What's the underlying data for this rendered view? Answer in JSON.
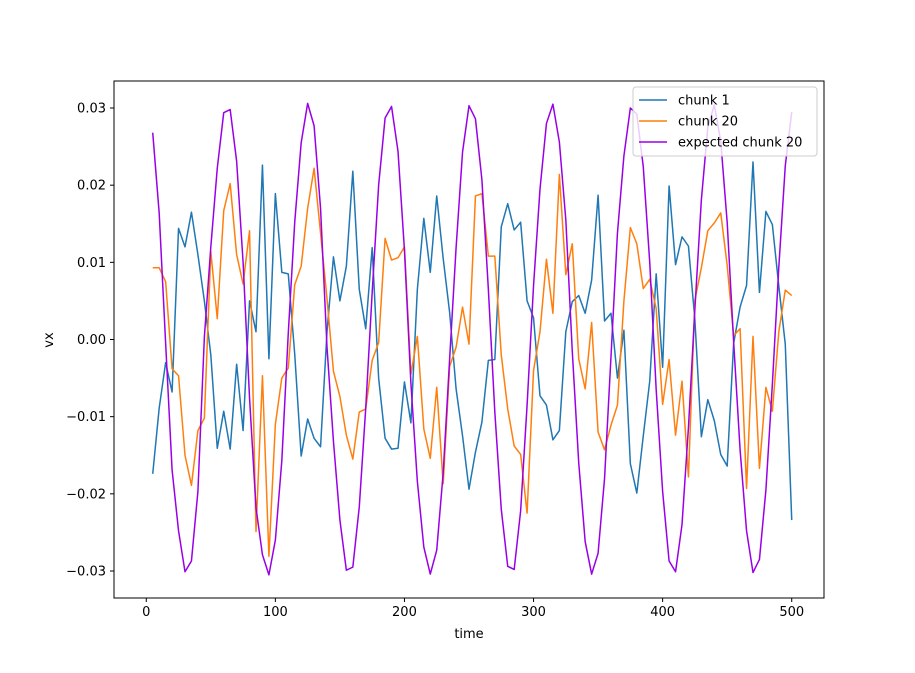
{
  "chart_data": {
    "type": "line",
    "xlabel": "time",
    "ylabel": "vx",
    "xlim": [
      -25,
      525
    ],
    "ylim": [
      -0.0335,
      0.0335
    ],
    "xticks": [
      0,
      100,
      200,
      300,
      400,
      500
    ],
    "yticks": [
      -0.03,
      -0.02,
      -0.01,
      0.0,
      0.01,
      0.02,
      0.03
    ],
    "xtick_labels": [
      "0",
      "100",
      "200",
      "300",
      "400",
      "500"
    ],
    "ytick_labels": [
      "−0.03",
      "−0.02",
      "−0.01",
      "0.00",
      "0.01",
      "0.02",
      "0.03"
    ],
    "legend_position": "upper-right",
    "grid": false,
    "x": [
      5,
      10,
      15,
      20,
      25,
      30,
      35,
      40,
      45,
      50,
      55,
      60,
      65,
      70,
      75,
      80,
      85,
      90,
      95,
      100,
      105,
      110,
      115,
      120,
      125,
      130,
      135,
      140,
      145,
      150,
      155,
      160,
      165,
      170,
      175,
      180,
      185,
      190,
      195,
      200,
      205,
      210,
      215,
      220,
      225,
      230,
      235,
      240,
      245,
      250,
      255,
      260,
      265,
      270,
      275,
      280,
      285,
      290,
      295,
      300,
      305,
      310,
      315,
      320,
      325,
      330,
      335,
      340,
      345,
      350,
      355,
      360,
      365,
      370,
      375,
      380,
      385,
      390,
      395,
      400,
      405,
      410,
      415,
      420,
      425,
      430,
      435,
      440,
      445,
      450,
      455,
      460,
      465,
      470,
      475,
      480,
      485,
      490,
      495,
      500
    ],
    "series": [
      {
        "name": "chunk 1",
        "color": "#1f77b4",
        "values": [
          -0.0174,
          -0.0089,
          -0.003,
          -0.0068,
          0.0144,
          0.012,
          0.0165,
          0.011,
          0.005,
          -0.002,
          -0.0141,
          -0.0093,
          -0.0142,
          -0.0032,
          -0.0118,
          0.005,
          0.001,
          0.0226,
          -0.0025,
          0.0189,
          0.0087,
          0.0085,
          -0.0019,
          -0.0151,
          -0.0103,
          -0.0128,
          -0.0139,
          0.001,
          0.0107,
          0.005,
          0.0095,
          0.0218,
          0.0065,
          0.0014,
          0.0119,
          -0.005,
          -0.0128,
          -0.0142,
          -0.0141,
          -0.0055,
          -0.0108,
          0.0065,
          0.0157,
          0.0087,
          0.0186,
          0.0105,
          0.0035,
          -0.0064,
          -0.0125,
          -0.0194,
          -0.0146,
          -0.0107,
          -0.0027,
          -0.0026,
          0.0146,
          0.0176,
          0.0142,
          0.0152,
          0.005,
          0.0028,
          -0.0073,
          -0.0085,
          -0.013,
          -0.0118,
          0.001,
          0.0049,
          0.0057,
          0.0034,
          0.0077,
          0.0187,
          0.0024,
          0.0034,
          -0.005,
          0.0012,
          -0.0161,
          -0.0199,
          -0.0125,
          -0.0054,
          0.0085,
          -0.0036,
          0.0199,
          0.0097,
          0.0133,
          0.0121,
          0.0025,
          -0.0126,
          -0.0078,
          -0.0105,
          -0.0149,
          -0.0164,
          -0.0005,
          0.0042,
          0.007,
          0.023,
          0.0061,
          0.0166,
          0.0149,
          0.0069,
          -0.0006,
          -0.0234
        ]
      },
      {
        "name": "chunk 20",
        "color": "#ff7f0e",
        "values": [
          0.0093,
          0.0093,
          0.0075,
          -0.0038,
          -0.0047,
          -0.015,
          -0.0189,
          -0.0118,
          -0.0102,
          0.0114,
          0.0027,
          0.0167,
          0.0202,
          0.011,
          0.0072,
          0.0141,
          -0.0249,
          -0.0047,
          -0.0281,
          -0.011,
          -0.005,
          -0.0037,
          0.0071,
          0.0095,
          0.017,
          0.0222,
          0.0138,
          0.0053,
          -0.0041,
          -0.0074,
          -0.0124,
          -0.0155,
          -0.0094,
          -0.009,
          -0.0027,
          -0.0004,
          0.0131,
          0.0103,
          0.0106,
          0.012,
          -0.0045,
          0.0004,
          -0.0116,
          -0.0154,
          -0.0062,
          -0.0187,
          -0.0035,
          -0.001,
          0.0042,
          -0.0006,
          0.0186,
          0.0189,
          0.0108,
          0.0108,
          -0.002,
          -0.009,
          -0.0138,
          -0.0149,
          -0.0225,
          -0.004,
          0.001,
          0.0104,
          0.0034,
          0.0214,
          0.0084,
          0.0124,
          -0.0025,
          -0.0064,
          0.0022,
          -0.012,
          -0.0143,
          -0.0111,
          -0.0085,
          0.005,
          0.0145,
          0.0124,
          0.0066,
          0.0078,
          0.004,
          -0.0084,
          -0.0026,
          -0.0124,
          -0.0054,
          -0.0178,
          0.0051,
          0.0093,
          0.0141,
          0.0151,
          0.0164,
          0.0096,
          0.0005,
          0.0014,
          -0.0193,
          0.0004,
          -0.0167,
          -0.0062,
          -0.0093,
          0.001,
          0.0064,
          0.0057
        ]
      },
      {
        "name": "expected chunk 20",
        "color": "#9a00e6",
        "values": [
          0.0268,
          0.0164,
          -0.0005,
          -0.0169,
          -0.0248,
          -0.0301,
          -0.0287,
          -0.0197,
          0.0003,
          0.012,
          0.0222,
          0.0294,
          0.0298,
          0.0231,
          0.01,
          -0.0076,
          -0.0218,
          -0.0279,
          -0.0305,
          -0.026,
          -0.0157,
          0.0008,
          0.0152,
          0.0255,
          0.0306,
          0.0277,
          0.017,
          -0.001,
          -0.0132,
          -0.0234,
          -0.0299,
          -0.0295,
          -0.0217,
          -0.0089,
          0.0061,
          0.02,
          0.0287,
          0.0302,
          0.0244,
          0.0116,
          -0.0057,
          -0.0184,
          -0.0269,
          -0.0304,
          -0.0273,
          -0.0173,
          -0.0025,
          0.0119,
          0.0243,
          0.0303,
          0.0286,
          0.0207,
          0.0065,
          -0.0094,
          -0.022,
          -0.0294,
          -0.0298,
          -0.0222,
          -0.0085,
          0.007,
          0.0195,
          0.028,
          0.0305,
          0.0256,
          0.0155,
          -0.0015,
          -0.016,
          -0.0262,
          -0.0304,
          -0.0277,
          -0.018,
          -0.0022,
          0.0138,
          0.0238,
          0.03,
          0.0292,
          0.0224,
          0.01,
          -0.0065,
          -0.0197,
          -0.0287,
          -0.0301,
          -0.024,
          -0.0114,
          0.004,
          0.0181,
          0.0275,
          0.0304,
          0.0257,
          0.0152,
          -0.0003,
          -0.0143,
          -0.0248,
          -0.0302,
          -0.0285,
          -0.0195,
          -0.0058,
          0.0094,
          0.0225,
          0.0295
        ]
      }
    ]
  }
}
